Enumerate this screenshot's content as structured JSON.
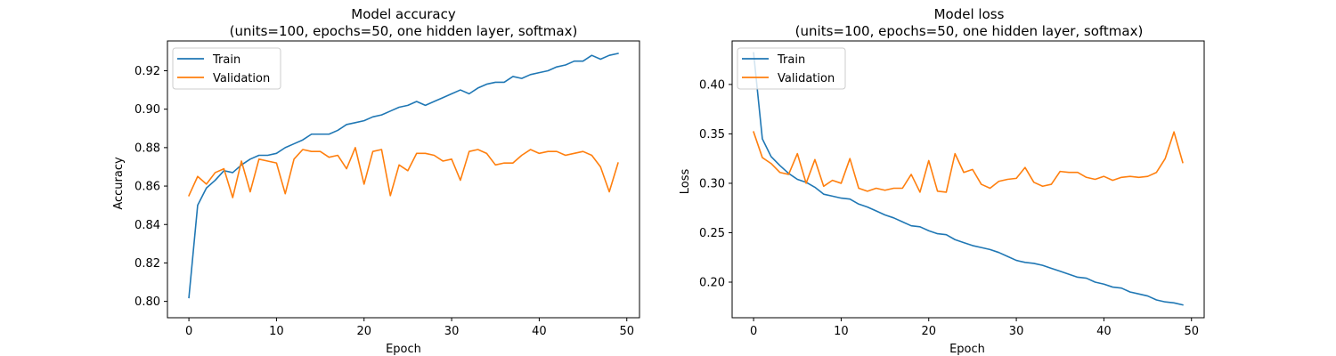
{
  "chart_data": [
    {
      "type": "line",
      "title": "Model accuracy",
      "subtitle": "(units=100, epochs=50, one hidden layer, softmax)",
      "xlabel": "Epoch",
      "ylabel": "Accuracy",
      "xlim": [
        -2.45,
        51.45
      ],
      "ylim": [
        0.7915,
        0.9355
      ],
      "xticks": [
        0,
        10,
        20,
        30,
        40,
        50
      ],
      "yticks": [
        0.8,
        0.82,
        0.84,
        0.86,
        0.88,
        0.9,
        0.92
      ],
      "ytick_labels": [
        "0.80",
        "0.82",
        "0.84",
        "0.86",
        "0.88",
        "0.90",
        "0.92"
      ],
      "grid": false,
      "legend_position": "upper-left",
      "series": [
        {
          "name": "Train",
          "color": "#1f77b4",
          "values": [
            0.802,
            0.85,
            0.859,
            0.863,
            0.868,
            0.867,
            0.871,
            0.874,
            0.876,
            0.876,
            0.877,
            0.88,
            0.882,
            0.884,
            0.887,
            0.887,
            0.887,
            0.889,
            0.892,
            0.893,
            0.894,
            0.896,
            0.897,
            0.899,
            0.901,
            0.902,
            0.904,
            0.902,
            0.904,
            0.906,
            0.908,
            0.91,
            0.908,
            0.911,
            0.913,
            0.914,
            0.914,
            0.917,
            0.916,
            0.918,
            0.919,
            0.92,
            0.922,
            0.923,
            0.925,
            0.925,
            0.928,
            0.926,
            0.928,
            0.929
          ]
        },
        {
          "name": "Validation",
          "color": "#ff7f0e",
          "values": [
            0.855,
            0.865,
            0.861,
            0.867,
            0.869,
            0.854,
            0.873,
            0.857,
            0.874,
            0.873,
            0.872,
            0.856,
            0.874,
            0.879,
            0.878,
            0.878,
            0.875,
            0.876,
            0.869,
            0.88,
            0.861,
            0.878,
            0.879,
            0.855,
            0.871,
            0.868,
            0.877,
            0.877,
            0.876,
            0.873,
            0.874,
            0.863,
            0.878,
            0.879,
            0.877,
            0.871,
            0.872,
            0.872,
            0.876,
            0.879,
            0.877,
            0.878,
            0.878,
            0.876,
            0.877,
            0.878,
            0.876,
            0.87,
            0.857,
            0.872
          ]
        }
      ]
    },
    {
      "type": "line",
      "title": "Model loss",
      "subtitle": "(units=100, epochs=50, one hidden layer, softmax)",
      "xlabel": "Epoch",
      "ylabel": "Loss",
      "xlim": [
        -2.45,
        51.45
      ],
      "ylim": [
        0.164,
        0.444
      ],
      "xticks": [
        0,
        10,
        20,
        30,
        40,
        50
      ],
      "yticks": [
        0.2,
        0.25,
        0.3,
        0.35,
        0.4
      ],
      "ytick_labels": [
        "0.20",
        "0.25",
        "0.30",
        "0.35",
        "0.40"
      ],
      "grid": false,
      "legend_position": "upper-left",
      "series": [
        {
          "name": "Train",
          "color": "#1f77b4",
          "values": [
            0.432,
            0.345,
            0.327,
            0.318,
            0.31,
            0.304,
            0.301,
            0.296,
            0.289,
            0.287,
            0.285,
            0.284,
            0.279,
            0.276,
            0.272,
            0.268,
            0.265,
            0.261,
            0.257,
            0.256,
            0.252,
            0.249,
            0.248,
            0.243,
            0.24,
            0.237,
            0.235,
            0.233,
            0.23,
            0.226,
            0.222,
            0.22,
            0.219,
            0.217,
            0.214,
            0.211,
            0.208,
            0.205,
            0.204,
            0.2,
            0.198,
            0.195,
            0.194,
            0.19,
            0.188,
            0.186,
            0.182,
            0.18,
            0.179,
            0.177
          ]
        },
        {
          "name": "Validation",
          "color": "#ff7f0e",
          "values": [
            0.352,
            0.326,
            0.32,
            0.311,
            0.309,
            0.33,
            0.3,
            0.324,
            0.297,
            0.303,
            0.3,
            0.325,
            0.295,
            0.292,
            0.295,
            0.293,
            0.295,
            0.295,
            0.309,
            0.291,
            0.323,
            0.292,
            0.291,
            0.33,
            0.311,
            0.314,
            0.299,
            0.295,
            0.302,
            0.304,
            0.305,
            0.316,
            0.301,
            0.297,
            0.299,
            0.312,
            0.311,
            0.311,
            0.306,
            0.304,
            0.307,
            0.303,
            0.306,
            0.307,
            0.306,
            0.307,
            0.311,
            0.325,
            0.352,
            0.321
          ]
        }
      ]
    }
  ]
}
